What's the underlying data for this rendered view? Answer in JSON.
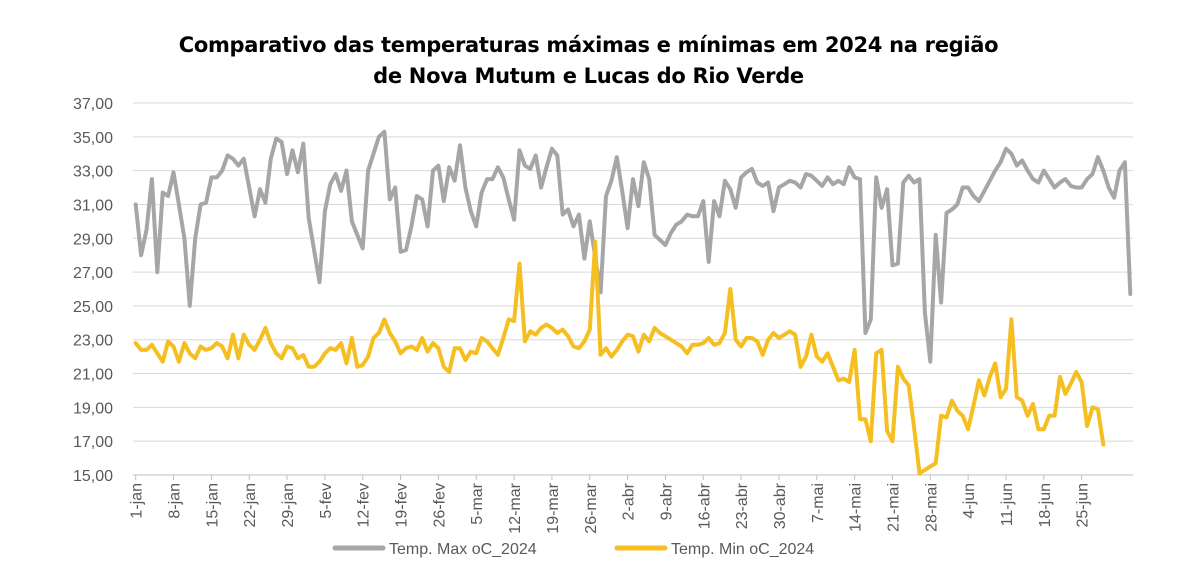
{
  "chart_data": {
    "type": "line",
    "title_lines": [
      "Comparativo das temperaturas máximas e mínimas em 2024 na região",
      "de Nova Mutum e Lucas do Rio Verde"
    ],
    "xlabel": "",
    "ylabel": "",
    "ylim": [
      15,
      37
    ],
    "y_ticks": [
      15,
      17,
      19,
      21,
      23,
      25,
      27,
      29,
      31,
      33,
      35,
      37
    ],
    "y_tick_labels": [
      "15,00",
      "17,00",
      "19,00",
      "21,00",
      "23,00",
      "25,00",
      "27,00",
      "29,00",
      "31,00",
      "33,00",
      "35,00",
      "37,00"
    ],
    "x_tick_labels": [
      "1-jan",
      "8-jan",
      "15-jan",
      "22-jan",
      "29-jan",
      "5-fev",
      "12-fev",
      "19-fev",
      "26-fev",
      "5-mar",
      "12-mar",
      "19-mar",
      "26-mar",
      "2-abr",
      "9-abr",
      "16-abr",
      "23-abr",
      "30-abr",
      "7-mai",
      "14-mai",
      "21-mai",
      "28-mai",
      "4-jun",
      "11-jun",
      "18-jun",
      "25-jun"
    ],
    "x_start": "2024-01-01",
    "x_end": "2024-06-30",
    "grid": true,
    "legend_position": "bottom",
    "series": [
      {
        "name": "Temp. Max oC_2024",
        "color": "#A6A6A6",
        "values": [
          31.0,
          28.0,
          29.5,
          32.5,
          27.0,
          31.7,
          31.5,
          32.9,
          31.0,
          29.0,
          25.0,
          29.0,
          31.0,
          31.1,
          32.6,
          32.6,
          33.0,
          33.9,
          33.7,
          33.3,
          33.7,
          32.0,
          30.3,
          31.9,
          31.1,
          33.7,
          34.9,
          34.7,
          32.8,
          34.2,
          32.9,
          34.6,
          30.2,
          28.3,
          26.4,
          30.6,
          32.2,
          32.8,
          31.8,
          33.0,
          30.0,
          29.2,
          28.4,
          33.0,
          34.0,
          35.0,
          35.3,
          31.3,
          32.0,
          28.2,
          28.3,
          29.7,
          31.5,
          31.3,
          29.7,
          33.0,
          33.3,
          31.2,
          33.2,
          32.4,
          34.5,
          32.0,
          30.6,
          29.7,
          31.7,
          32.5,
          32.5,
          33.2,
          32.6,
          31.3,
          30.1,
          34.2,
          33.3,
          33.1,
          33.9,
          32.0,
          33.2,
          34.3,
          33.9,
          30.4,
          30.7,
          29.7,
          30.4,
          27.8,
          30.0,
          27.9,
          25.8,
          31.5,
          32.4,
          33.8,
          31.8,
          29.6,
          32.5,
          30.9,
          33.5,
          32.5,
          29.2,
          28.9,
          28.6,
          29.3,
          29.8,
          30.0,
          30.4,
          30.3,
          30.3,
          31.2,
          27.6,
          31.2,
          30.3,
          32.4,
          31.9,
          30.8,
          32.6,
          32.9,
          33.1,
          32.3,
          32.1,
          32.3,
          30.6,
          32.0,
          32.2,
          32.4,
          32.3,
          32.0,
          32.8,
          32.7,
          32.4,
          32.1,
          32.6,
          32.2,
          32.4,
          32.2,
          33.2,
          32.6,
          32.5,
          23.4,
          24.2,
          32.6,
          30.8,
          31.9,
          27.4,
          27.5,
          32.3,
          32.7,
          32.3,
          32.5,
          24.6,
          21.7,
          29.2,
          25.2,
          30.5,
          30.7,
          31.0,
          32.0,
          32.0,
          31.5,
          31.2,
          31.8,
          32.4,
          33.0,
          33.5,
          34.3,
          34.0,
          33.3,
          33.6,
          33.0,
          32.5,
          32.3,
          33.0,
          32.5,
          32.0,
          32.3,
          32.5,
          32.1,
          32.0,
          32.0,
          32.5,
          32.8,
          33.8,
          33.0,
          32.0,
          31.4,
          33.0,
          33.5,
          25.7
        ]
      },
      {
        "name": "Temp. Min oC_2024",
        "color": "#F5BF21",
        "values": [
          22.8,
          22.4,
          22.4,
          22.7,
          22.2,
          21.7,
          22.9,
          22.6,
          21.7,
          22.8,
          22.2,
          21.9,
          22.6,
          22.4,
          22.5,
          22.8,
          22.6,
          21.9,
          23.3,
          21.9,
          23.3,
          22.7,
          22.4,
          23.0,
          23.7,
          22.8,
          22.2,
          21.9,
          22.6,
          22.5,
          21.9,
          22.1,
          21.4,
          21.4,
          21.7,
          22.2,
          22.5,
          22.4,
          22.8,
          21.6,
          23.1,
          21.4,
          21.5,
          22.0,
          23.1,
          23.4,
          24.2,
          23.4,
          22.9,
          22.2,
          22.5,
          22.6,
          22.4,
          23.1,
          22.3,
          22.8,
          22.5,
          21.4,
          21.1,
          22.5,
          22.5,
          21.8,
          22.3,
          22.2,
          23.1,
          22.9,
          22.5,
          22.1,
          23.1,
          24.2,
          24.1,
          27.5,
          22.9,
          23.5,
          23.3,
          23.7,
          23.9,
          23.7,
          23.4,
          23.6,
          23.2,
          22.6,
          22.5,
          22.9,
          23.6,
          28.8,
          22.1,
          22.5,
          22.0,
          22.4,
          22.9,
          23.3,
          23.2,
          22.3,
          23.3,
          22.9,
          23.7,
          23.4,
          23.2,
          23.0,
          22.8,
          22.6,
          22.2,
          22.7,
          22.7,
          22.8,
          23.1,
          22.7,
          22.8,
          23.4,
          26.0,
          23.0,
          22.6,
          23.1,
          23.1,
          22.9,
          22.1,
          23.0,
          23.4,
          23.1,
          23.3,
          23.5,
          23.3,
          21.4,
          22.0,
          23.3,
          22.0,
          21.7,
          22.2,
          21.4,
          20.6,
          20.7,
          20.5,
          22.4,
          18.3,
          18.3,
          17.0,
          22.2,
          22.4,
          17.6,
          17.0,
          21.4,
          20.7,
          20.3,
          17.8,
          15.1,
          15.3,
          15.5,
          15.7,
          18.5,
          18.4,
          19.4,
          18.8,
          18.5,
          17.7,
          19.1,
          20.6,
          19.7,
          20.8,
          21.6,
          19.6,
          20.1,
          24.2,
          19.6,
          19.4,
          18.5,
          19.2,
          17.7,
          17.7,
          18.5,
          18.5,
          20.8,
          19.8,
          20.4,
          21.1,
          20.5,
          17.9,
          19.0,
          18.9,
          16.8
        ]
      }
    ]
  }
}
